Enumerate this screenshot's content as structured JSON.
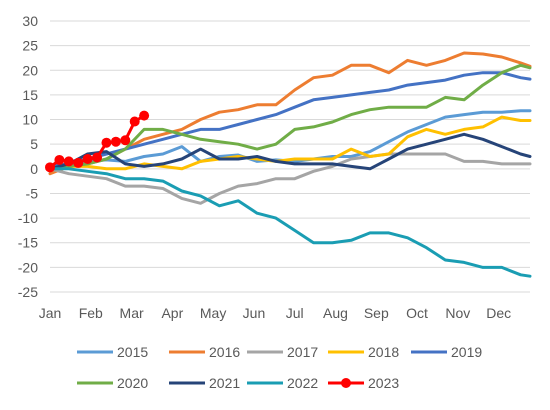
{
  "chart_data": {
    "type": "line",
    "title": "",
    "xlabel": "",
    "ylabel": "",
    "ylim": [
      -25,
      30
    ],
    "yticks": [
      30,
      25,
      20,
      15,
      10,
      5,
      0,
      -5,
      -10,
      -15,
      -20,
      -25
    ],
    "xticks": [
      "Jan",
      "Feb",
      "Mar",
      "Apr",
      "May",
      "Jun",
      "Jul",
      "Aug",
      "Sep",
      "Oct",
      "Nov",
      "Dec"
    ],
    "xrange_weeks": [
      1,
      52
    ],
    "grid": "horizontal",
    "legend_position": "bottom",
    "series": [
      {
        "name": "2015",
        "color": "#5B9BD5",
        "x": [
          1,
          3,
          5,
          7,
          9,
          11,
          13,
          15,
          17,
          19,
          21,
          23,
          25,
          27,
          29,
          31,
          33,
          35,
          37,
          39,
          41,
          43,
          45,
          47,
          49,
          51,
          52
        ],
        "y": [
          -0.5,
          0.3,
          1.5,
          1.8,
          1.5,
          2.5,
          3,
          4.5,
          1.5,
          2.5,
          2.8,
          1.5,
          1.8,
          1.5,
          2,
          2.5,
          2.5,
          3.5,
          5.5,
          7.5,
          9,
          10.5,
          11,
          11.5,
          11.5,
          11.8,
          11.8
        ]
      },
      {
        "name": "2016",
        "color": "#ED7D31",
        "x": [
          1,
          3,
          5,
          7,
          9,
          11,
          13,
          15,
          17,
          19,
          21,
          23,
          25,
          27,
          29,
          31,
          33,
          35,
          37,
          39,
          41,
          43,
          45,
          47,
          49,
          51,
          52
        ],
        "y": [
          -1,
          0.5,
          1,
          2,
          4,
          6,
          7,
          8,
          10,
          11.5,
          12,
          13,
          13,
          16,
          18.5,
          19,
          21,
          21,
          19.5,
          22,
          21,
          22,
          23.5,
          23.3,
          22.7,
          21.5,
          20.8
        ]
      },
      {
        "name": "2017",
        "color": "#A5A5A5",
        "x": [
          1,
          3,
          5,
          7,
          9,
          11,
          13,
          15,
          17,
          19,
          21,
          23,
          25,
          27,
          29,
          31,
          33,
          35,
          37,
          39,
          41,
          43,
          45,
          47,
          49,
          51,
          52
        ],
        "y": [
          0,
          -1,
          -1.5,
          -2,
          -3.5,
          -3.5,
          -4,
          -6,
          -7,
          -5,
          -3.5,
          -3,
          -2,
          -2,
          -0.5,
          0.5,
          2,
          2.5,
          3,
          3,
          3,
          3,
          1.5,
          1.5,
          1,
          1,
          1
        ]
      },
      {
        "name": "2018",
        "color": "#FFC000",
        "x": [
          1,
          3,
          5,
          7,
          9,
          11,
          13,
          15,
          17,
          19,
          21,
          23,
          25,
          27,
          29,
          31,
          33,
          35,
          37,
          39,
          41,
          43,
          45,
          47,
          49,
          51,
          52
        ],
        "y": [
          0,
          0.5,
          0.5,
          0,
          0,
          1,
          0.5,
          0,
          1.5,
          2,
          2.5,
          2,
          1.5,
          2,
          2,
          2,
          4,
          2.5,
          3,
          6.5,
          8,
          7,
          8,
          8.5,
          10.5,
          9.8,
          9.8
        ]
      },
      {
        "name": "2019",
        "color": "#4472C4",
        "x": [
          1,
          3,
          5,
          7,
          9,
          11,
          13,
          15,
          17,
          19,
          21,
          23,
          25,
          27,
          29,
          31,
          33,
          35,
          37,
          39,
          41,
          43,
          45,
          47,
          49,
          51,
          52
        ],
        "y": [
          0.5,
          1,
          2,
          3,
          4,
          5,
          6,
          7,
          8,
          8,
          9,
          10,
          11,
          12.5,
          14,
          14.5,
          15,
          15.5,
          16,
          17,
          17.5,
          18,
          19,
          19.5,
          19.5,
          18.5,
          18.2
        ]
      },
      {
        "name": "2020",
        "color": "#70AD47",
        "x": [
          1,
          3,
          5,
          7,
          9,
          11,
          13,
          15,
          17,
          19,
          21,
          23,
          25,
          27,
          29,
          31,
          33,
          35,
          37,
          39,
          41,
          43,
          45,
          47,
          49,
          51,
          52
        ],
        "y": [
          0,
          0.5,
          1,
          2,
          4,
          8,
          8,
          7,
          6,
          5.5,
          5,
          4,
          5,
          8,
          8.5,
          9.5,
          11,
          12,
          12.5,
          12.5,
          12.5,
          14.5,
          14,
          17,
          19.5,
          21,
          20.5
        ]
      },
      {
        "name": "2021",
        "color": "#264478",
        "x": [
          1,
          3,
          5,
          7,
          9,
          11,
          13,
          15,
          17,
          19,
          21,
          23,
          25,
          27,
          29,
          31,
          33,
          35,
          37,
          39,
          41,
          43,
          45,
          47,
          49,
          51,
          52
        ],
        "y": [
          0,
          1,
          3,
          3.5,
          1,
          0.5,
          1,
          2,
          4,
          2,
          2,
          2.5,
          1.5,
          1,
          1,
          1,
          0.5,
          0,
          2,
          4,
          5,
          6,
          7,
          6,
          4.5,
          3,
          2.5
        ]
      },
      {
        "name": "2022",
        "color": "#1A9DB3",
        "x": [
          1,
          3,
          5,
          7,
          9,
          11,
          13,
          15,
          17,
          19,
          21,
          23,
          25,
          27,
          29,
          31,
          33,
          35,
          37,
          39,
          41,
          43,
          45,
          47,
          49,
          51,
          52
        ],
        "y": [
          0,
          0,
          -0.5,
          -1,
          -2,
          -2,
          -2.5,
          -4.5,
          -5.5,
          -7.5,
          -6.5,
          -9,
          -10,
          -12.5,
          -15,
          -15,
          -14.5,
          -13,
          -13,
          -14,
          -16,
          -18.5,
          -19,
          -20,
          -20,
          -21.5,
          -21.8
        ]
      },
      {
        "name": "2023",
        "color": "#FF0000",
        "markers": true,
        "x": [
          1,
          2,
          3,
          4,
          5,
          6,
          7,
          8,
          9,
          10,
          11
        ],
        "y": [
          0.3,
          1.8,
          1.5,
          1.2,
          2,
          2.3,
          5.3,
          5.5,
          5.8,
          9.6,
          10.8
        ]
      }
    ]
  }
}
